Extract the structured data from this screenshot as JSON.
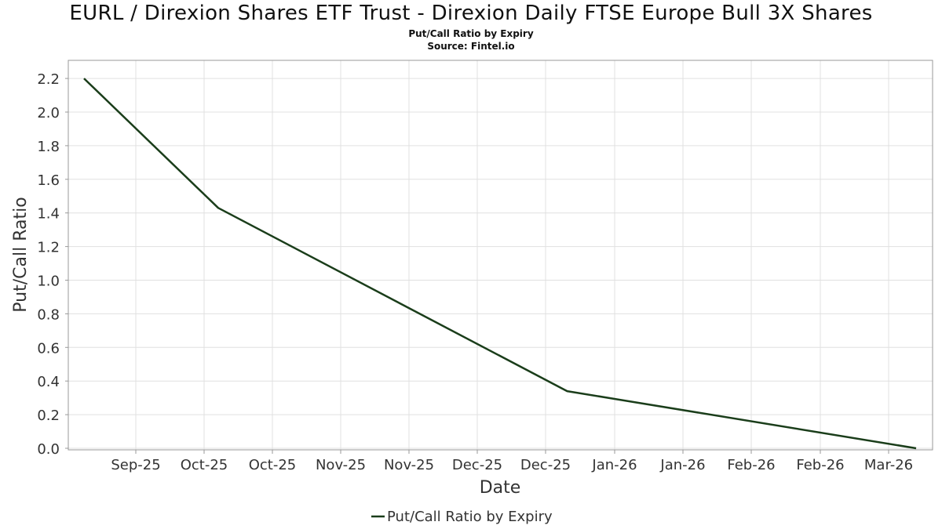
{
  "header": {
    "title": "EURL / Direxion Shares ETF Trust - Direxion Daily FTSE Europe Bull 3X Shares",
    "subtitle": "Put/Call Ratio by Expiry",
    "source": "Source: Fintel.io"
  },
  "chart_data": {
    "type": "line",
    "title": "EURL / Direxion Shares ETF Trust - Direxion Daily FTSE Europe Bull 3X Shares",
    "subtitle": "Put/Call Ratio by Expiry",
    "xlabel": "Date",
    "ylabel": "Put/Call Ratio",
    "x_ticks": [
      "Sep-25",
      "Oct-25",
      "Oct-25",
      "Nov-25",
      "Nov-25",
      "Dec-25",
      "Dec-25",
      "Jan-26",
      "Jan-26",
      "Feb-26",
      "Feb-26",
      "Mar-26"
    ],
    "y_ticks": [
      "0.0",
      "0.2",
      "0.4",
      "0.6",
      "0.8",
      "1.0",
      "1.2",
      "1.4",
      "1.6",
      "1.8",
      "2.0",
      "2.2"
    ],
    "ylim": [
      0,
      2.3
    ],
    "grid": true,
    "legend_position": "bottom",
    "series": [
      {
        "name": "Put/Call Ratio by Expiry",
        "color": "#1a3d1a",
        "points": [
          {
            "x": "2025-08-15",
            "y": 2.2
          },
          {
            "x": "2025-09-19",
            "y": 1.43
          },
          {
            "x": "2025-12-19",
            "y": 0.34
          },
          {
            "x": "2026-03-20",
            "y": 0.0
          }
        ]
      }
    ]
  }
}
